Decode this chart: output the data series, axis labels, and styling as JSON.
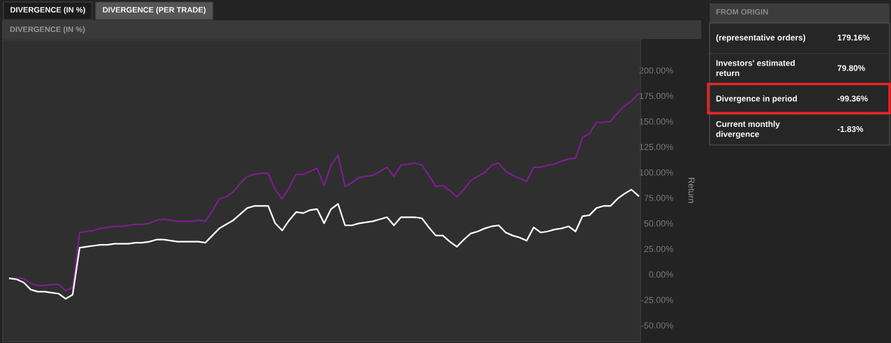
{
  "chart_data": [
    {
      "type": "line",
      "title": "DIVERGENCE (IN %)",
      "annotations": [
        "DIVERGENCE (IN %)",
        "DIVERGENCE (PER TRADE)"
      ],
      "ylabel": "Return",
      "categories": [
        null,
        null,
        null,
        null,
        null,
        null,
        null,
        null,
        null,
        null,
        null,
        null,
        null,
        null,
        null,
        null,
        null,
        null,
        null,
        null,
        null,
        null,
        null,
        null,
        null,
        null,
        null,
        null,
        null,
        null,
        null,
        null,
        null,
        null,
        null,
        null,
        null,
        null,
        null,
        null,
        null,
        null,
        null,
        null,
        null,
        null,
        null,
        null,
        null,
        null,
        null,
        null,
        null,
        null,
        null,
        null,
        null,
        null,
        null,
        null,
        null,
        null,
        null,
        null,
        null,
        null,
        null,
        null,
        null,
        null,
        null,
        null,
        null,
        null,
        null,
        null,
        null,
        null,
        null,
        null,
        null,
        null,
        null,
        null,
        null,
        null,
        null,
        null,
        null,
        null,
        null
      ],
      "series": [
        {
          "color": "#7b1f8c",
          "values": [
            -4,
            -4,
            -4,
            -9,
            -11,
            -11,
            -10,
            -10,
            -16,
            -13,
            41,
            42,
            43,
            45,
            46,
            47,
            47,
            48,
            49,
            49,
            50,
            53,
            54,
            53,
            52,
            52,
            52,
            53,
            52,
            62,
            74,
            76,
            81,
            89,
            96,
            98,
            99,
            99,
            83,
            74,
            85,
            98,
            98,
            101,
            104,
            87,
            107,
            117,
            86,
            90,
            95,
            96,
            97,
            101,
            105,
            96,
            107,
            108,
            109,
            107,
            97,
            86,
            87,
            82,
            76,
            83,
            92,
            96,
            100,
            107,
            109,
            101,
            97,
            94,
            91,
            105,
            105,
            107,
            108,
            111,
            113,
            114,
            134,
            138,
            149,
            149,
            150,
            158,
            165,
            170,
            177
          ]
        },
        {
          "color": "#ffffff",
          "values": [
            -4,
            -5,
            -8,
            -15,
            -17,
            -17,
            -18,
            -19,
            -24,
            -20,
            26,
            27,
            28,
            29,
            29,
            30,
            30,
            30,
            31,
            31,
            32,
            34,
            34,
            33,
            32,
            32,
            32,
            32,
            31,
            38,
            45,
            49,
            53,
            59,
            65,
            67,
            67,
            67,
            50,
            43,
            53,
            61,
            60,
            63,
            64,
            50,
            64,
            69,
            48,
            48,
            50,
            51,
            52,
            54,
            56,
            48,
            56,
            56,
            56,
            55,
            46,
            38,
            38,
            32,
            27,
            34,
            40,
            42,
            45,
            47,
            48,
            41,
            38,
            36,
            33,
            46,
            41,
            42,
            44,
            45,
            47,
            42,
            57,
            58,
            65,
            67,
            67,
            74,
            79,
            83,
            77
          ]
        }
      ],
      "ylim": [
        -66,
        230
      ],
      "yticks": [
        {
          "value": -50,
          "label": "-50.00%"
        },
        {
          "value": -25,
          "label": "-25.00%"
        },
        {
          "value": 0,
          "label": "0.00%"
        },
        {
          "value": 25,
          "label": "25.00%"
        },
        {
          "value": 50,
          "label": "50.00%"
        },
        {
          "value": 75,
          "label": "75.00%"
        },
        {
          "value": 100,
          "label": "100.00%"
        },
        {
          "value": 125,
          "label": "125.00%"
        },
        {
          "value": 150,
          "label": "150.00%"
        },
        {
          "value": 175,
          "label": "175.00%"
        },
        {
          "value": 200,
          "label": "200.00%"
        }
      ],
      "tick_labels": "y",
      "grid": false,
      "legend": false,
      "line_style": "solid",
      "marker": "none"
    },
    {
      "type": "other",
      "title": "FROM ORIGIN",
      "annotations": [
        "(representative orders)",
        "179.16%",
        "Investors' estimated\nreturn",
        "79.80%",
        "Divergence in period",
        "-99.36%",
        "Current monthly\ndivergence",
        "-1.83%"
      ]
    }
  ]
}
